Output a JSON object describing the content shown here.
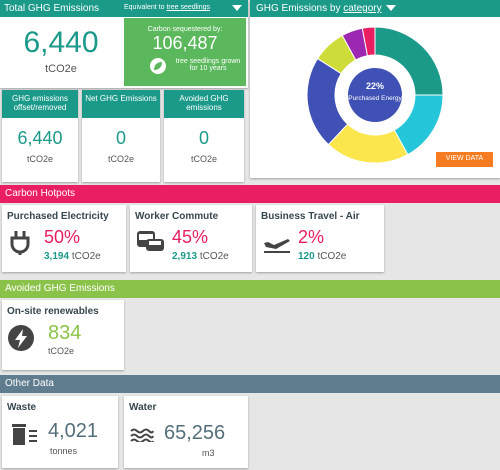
{
  "total": {
    "title": "Total GHG Emissions",
    "equivalent_label": "Equivalent to",
    "equivalent_unit": "tree seedlings",
    "value": "6,440",
    "unit": "tCO2e",
    "sequestered": {
      "label": "Carbon sequestered by:",
      "value": "106,487",
      "note": "tree seedlings grown for 10 years"
    }
  },
  "summary": [
    {
      "title": "GHG emissions offset/removed",
      "value": "6,440",
      "unit": "tCO2e"
    },
    {
      "title": "Net GHG Emissions",
      "value": "0",
      "unit": "tCO2e"
    },
    {
      "title": "Avoided GHG emissions",
      "value": "0",
      "unit": "tCO2e"
    }
  ],
  "chart_data": {
    "type": "donut",
    "title": "GHG Emissions by",
    "title_link": "category",
    "values": [
      25,
      17,
      20,
      22,
      8,
      5,
      3
    ],
    "colors": [
      "#1b9a8a",
      "#26c6da",
      "#fbe74d",
      "#3f51b5",
      "#cddc39",
      "#9c27b0",
      "#e91e63"
    ],
    "highlight": {
      "index": 3,
      "value_label": "22%",
      "name": "Purchased Energy"
    },
    "button": "VIEW DATA"
  },
  "hotspots": {
    "title": "Carbon Hotpots",
    "items": [
      {
        "name": "Purchased Electricity",
        "percent": "50%",
        "value": "3,194",
        "unit": "tCO2e"
      },
      {
        "name": "Worker Commute",
        "percent": "45%",
        "value": "2,913",
        "unit": "tCO2e"
      },
      {
        "name": "Business Travel - Air",
        "percent": "2%",
        "value": "120",
        "unit": "tCO2e"
      }
    ]
  },
  "avoided": {
    "title": "Avoided GHG Emissions",
    "items": [
      {
        "name": "On-site renewables",
        "value": "834",
        "unit": "tCO2e"
      }
    ]
  },
  "other": {
    "title": "Other Data",
    "items": [
      {
        "name": "Waste",
        "value": "4,021",
        "unit": "tonnes"
      },
      {
        "name": "Water",
        "value": "65,256",
        "unit": "m3"
      }
    ]
  }
}
